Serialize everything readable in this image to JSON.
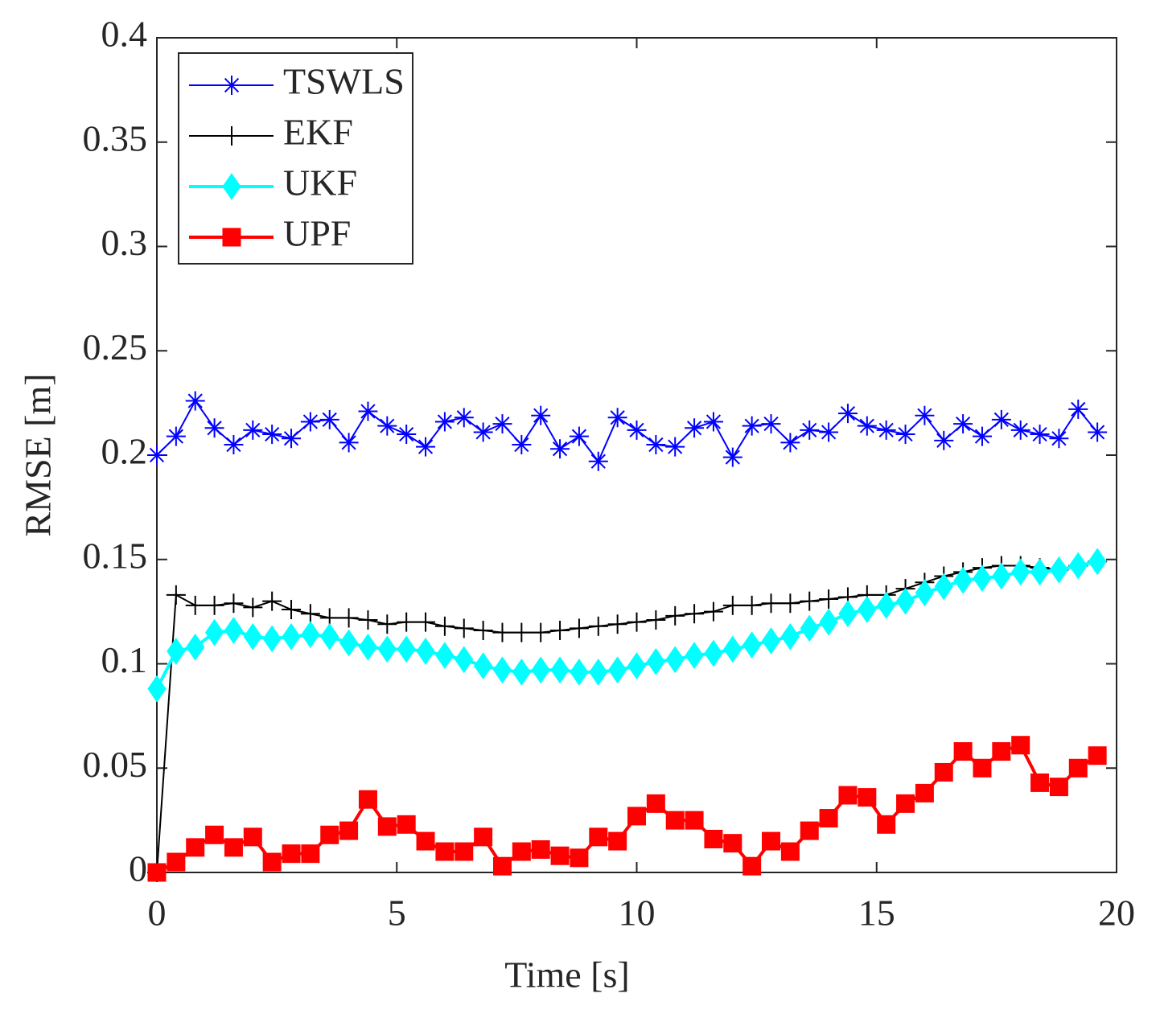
{
  "chart_data": {
    "type": "line",
    "xlabel": "Time [s]",
    "ylabel": "RMSE [m]",
    "x": [
      0,
      0.4,
      0.8,
      1.2,
      1.6,
      2.0,
      2.4,
      2.8,
      3.2,
      3.6,
      4.0,
      4.4,
      4.8,
      5.2,
      5.6,
      6.0,
      6.4,
      6.8,
      7.2,
      7.6,
      8.0,
      8.4,
      8.8,
      9.2,
      9.6,
      10.0,
      10.4,
      10.8,
      11.2,
      11.6,
      12.0,
      12.4,
      12.8,
      13.2,
      13.6,
      14.0,
      14.4,
      14.8,
      15.2,
      15.6,
      16.0,
      16.4,
      16.8,
      17.2,
      17.6,
      18.0,
      18.4,
      18.8,
      19.2,
      19.6
    ],
    "series": [
      {
        "name": "TSWLS",
        "color": "#0000ff",
        "marker": "asterisk",
        "values": [
          0.2,
          0.209,
          0.226,
          0.213,
          0.205,
          0.212,
          0.21,
          0.208,
          0.216,
          0.217,
          0.206,
          0.221,
          0.214,
          0.21,
          0.204,
          0.216,
          0.218,
          0.211,
          0.215,
          0.205,
          0.219,
          0.203,
          0.209,
          0.197,
          0.218,
          0.212,
          0.205,
          0.204,
          0.213,
          0.216,
          0.199,
          0.214,
          0.215,
          0.206,
          0.212,
          0.211,
          0.22,
          0.214,
          0.212,
          0.21,
          0.219,
          0.207,
          0.215,
          0.209,
          0.217,
          0.212,
          0.21,
          0.208,
          0.222,
          0.211
        ]
      },
      {
        "name": "EKF",
        "color": "#000000",
        "marker": "plus",
        "values": [
          0,
          0.133,
          0.128,
          0.128,
          0.129,
          0.127,
          0.13,
          0.126,
          0.124,
          0.122,
          0.122,
          0.121,
          0.119,
          0.12,
          0.12,
          0.118,
          0.117,
          0.116,
          0.115,
          0.115,
          0.115,
          0.116,
          0.117,
          0.118,
          0.119,
          0.12,
          0.121,
          0.123,
          0.124,
          0.125,
          0.128,
          0.128,
          0.129,
          0.129,
          0.13,
          0.131,
          0.132,
          0.133,
          0.133,
          0.136,
          0.139,
          0.142,
          0.144,
          0.146,
          0.147,
          0.147,
          0.146,
          0.145,
          0.147,
          0.149
        ]
      },
      {
        "name": "UKF",
        "color": "#00ffff",
        "marker": "diamond",
        "values": [
          0.088,
          0.106,
          0.108,
          0.115,
          0.116,
          0.113,
          0.112,
          0.113,
          0.114,
          0.113,
          0.11,
          0.108,
          0.107,
          0.107,
          0.106,
          0.104,
          0.102,
          0.099,
          0.097,
          0.096,
          0.097,
          0.097,
          0.096,
          0.096,
          0.097,
          0.099,
          0.101,
          0.102,
          0.104,
          0.105,
          0.107,
          0.109,
          0.111,
          0.113,
          0.117,
          0.12,
          0.124,
          0.126,
          0.128,
          0.13,
          0.134,
          0.137,
          0.14,
          0.141,
          0.142,
          0.144,
          0.144,
          0.145,
          0.147,
          0.149
        ]
      },
      {
        "name": "UPF",
        "color": "#ff0000",
        "marker": "square",
        "values": [
          0,
          0.005,
          0.012,
          0.018,
          0.012,
          0.017,
          0.005,
          0.009,
          0.009,
          0.018,
          0.02,
          0.035,
          0.022,
          0.023,
          0.015,
          0.01,
          0.01,
          0.017,
          0.003,
          0.01,
          0.011,
          0.008,
          0.007,
          0.017,
          0.015,
          0.027,
          0.033,
          0.025,
          0.025,
          0.016,
          0.014,
          0.003,
          0.015,
          0.01,
          0.02,
          0.026,
          0.037,
          0.036,
          0.023,
          0.033,
          0.038,
          0.048,
          0.058,
          0.05,
          0.058,
          0.061,
          0.043,
          0.041,
          0.05,
          0.056
        ]
      }
    ],
    "xlim": [
      0,
      20
    ],
    "xticks": [
      0,
      5,
      10,
      15,
      20
    ],
    "ylim": [
      0,
      0.4
    ],
    "yticks": [
      0,
      0.05,
      0.1,
      0.15,
      0.2,
      0.25,
      0.3,
      0.35,
      0.4
    ],
    "grid": false,
    "legend": "upper left"
  }
}
